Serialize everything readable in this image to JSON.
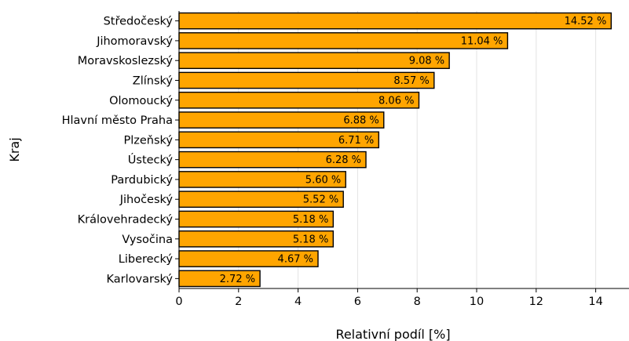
{
  "chart_data": {
    "type": "bar",
    "orientation": "horizontal",
    "categories": [
      "Středočeský",
      "Jihomoravský",
      "Moravskoslezský",
      "Zlínský",
      "Olomoucký",
      "Hlavní město Praha",
      "Plzeňský",
      "Ústecký",
      "Pardubický",
      "Jihočeský",
      "Královehradecký",
      "Vysočina",
      "Liberecký",
      "Karlovarský"
    ],
    "values": [
      14.52,
      11.04,
      9.08,
      8.57,
      8.06,
      6.88,
      6.71,
      6.28,
      5.6,
      5.52,
      5.18,
      5.18,
      4.67,
      2.72
    ],
    "data_labels": [
      "14.52 %",
      "11.04 %",
      "9.08 %",
      "8.57 %",
      "8.06 %",
      "6.88 %",
      "6.71 %",
      "6.28 %",
      "5.60 %",
      "5.52 %",
      "5.18 %",
      "5.18 %",
      "4.67 %",
      "2.72 %"
    ],
    "xlabel": "Relativní podíl [%]",
    "ylabel": "Kraj",
    "xlim": [
      0,
      15
    ],
    "xticks": [
      0,
      2,
      4,
      6,
      8,
      10,
      12,
      14
    ],
    "grid": "vertical",
    "bar_color": "#FFA500",
    "edge_color": "#000000"
  }
}
